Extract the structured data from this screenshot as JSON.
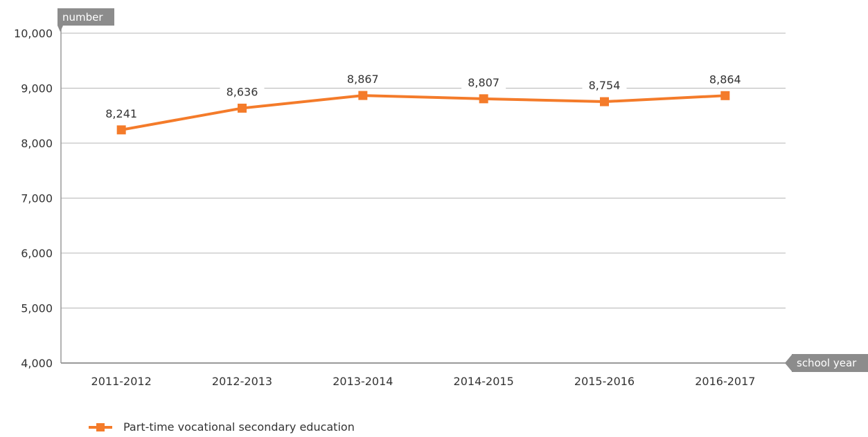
{
  "chart_data": {
    "type": "line",
    "title": "",
    "ylabel": "number",
    "xlabel": "school year",
    "ylim": [
      4000,
      10000
    ],
    "yticks": [
      "4,000",
      "5,000",
      "6,000",
      "7,000",
      "8,000",
      "9,000",
      "10,000"
    ],
    "ytick_values": [
      4000,
      5000,
      6000,
      7000,
      8000,
      9000,
      10000
    ],
    "categories": [
      "2011-2012",
      "2012-2013",
      "2013-2014",
      "2014-2015",
      "2015-2016",
      "2016-2017"
    ],
    "series": [
      {
        "name": "Part-time vocational secondary education",
        "values": [
          8241,
          8636,
          8867,
          8807,
          8754,
          8864
        ],
        "data_labels": [
          "8,241",
          "8,636",
          "8,867",
          "8,807",
          "8,754",
          "8,864"
        ],
        "color": "#f47b2a"
      }
    ],
    "grid": true,
    "legend": "bottom-left"
  }
}
